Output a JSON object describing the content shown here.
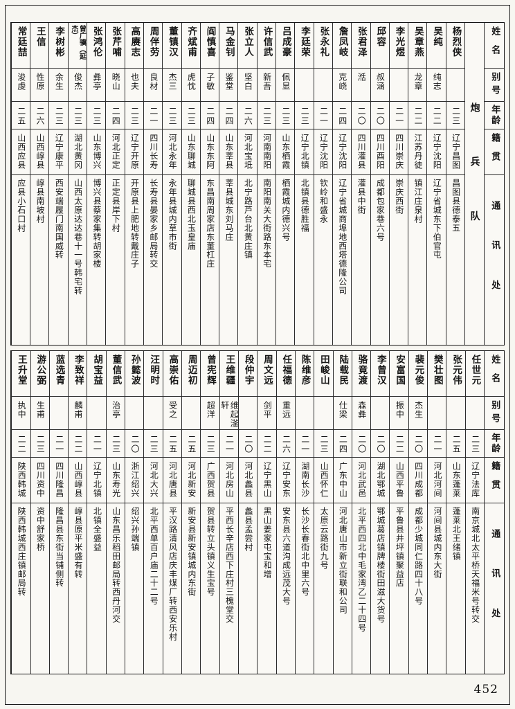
{
  "page": {
    "number": "452"
  },
  "headers": {
    "name": "姓名",
    "alias": "别号",
    "age": "年龄",
    "native": "籍贯",
    "address": "通讯处"
  },
  "tables": [
    {
      "section": "炮兵队",
      "entries": [
        {
          "name": "杨烈侠",
          "alias": "",
          "age": "二三",
          "native": "辽宁昌图",
          "address": "昌图县德泰五"
        },
        {
          "name": "吴纯",
          "alias": "纯志",
          "age": "二二",
          "native": "辽宁沈阳",
          "address": "辽宁省城东下伯官屯"
        },
        {
          "name": "吴章燕",
          "alias": "龙章",
          "age": "二二",
          "native": "江苏丹徒",
          "address": "镇江庄泉村"
        },
        {
          "name": "李光煜",
          "alias": "",
          "age": "二一",
          "native": "四川崇庆",
          "address": "崇庆西街"
        },
        {
          "name": "邱容",
          "alias": "叔涵",
          "age": "二〇",
          "native": "四川酉阳",
          "address": "成都包家巷六号"
        },
        {
          "name": "张君泽",
          "alias": "湉",
          "age": "二〇",
          "native": "四川灌县",
          "address": "灌县中街"
        },
        {
          "name": "詹凤岐",
          "alias": "克峣",
          "age": "二四",
          "native": "辽宁沈阳",
          "address": "辽宁省城商埠地西塔德隆公司"
        },
        {
          "name": "张永礼",
          "alias": "",
          "age": "二一",
          "native": "辽宁沈阳",
          "address": "钦岭和盛永"
        },
        {
          "name": "李廷荣",
          "alias": "",
          "age": "二三",
          "native": "辽宁北镇",
          "address": "北镇县德胜福"
        },
        {
          "name": "吕成豪",
          "alias": "佩显",
          "age": "二三",
          "native": "山东栖霞",
          "address": "栖霞城内德兴号"
        },
        {
          "name": "许信武",
          "alias": "新吾",
          "age": "二三",
          "native": "河南南阳",
          "address": "南阳南关大街路东本宅"
        },
        {
          "name": "张立人",
          "alias": "坚白",
          "age": "二六",
          "native": "河北宝坻",
          "address": "北宁路芦台北黄庄镇"
        },
        {
          "name": "马金钊",
          "alias": "鉴堂",
          "age": "二四",
          "native": "山东莘县",
          "address": "莘县城东刘马庄"
        },
        {
          "name": "阎慎喜",
          "alias": "子敏",
          "age": "二四",
          "native": "山东东阿",
          "address": "东昌南周家店东董杠庄"
        },
        {
          "name": "齐斌甫",
          "alias": "虎忱",
          "age": "二三",
          "native": "山东聊城",
          "address": "聊城县西北玉皇庙"
        },
        {
          "name": "董镇汉",
          "alias": "杰三",
          "age": "二三",
          "native": "河北永年",
          "address": "永年县城内草市街"
        },
        {
          "name": "周伴劳",
          "alias": "良材",
          "age": "二一",
          "native": "四川长寿",
          "address": "长寿县晏家乡邮局转交"
        },
        {
          "name": "高赓志",
          "alias": "也夫",
          "age": "二三",
          "native": "辽宁开原",
          "address": "开原县上肥地转戴庄子"
        },
        {
          "name": "张芹哺",
          "alias": "晓山",
          "age": "二四",
          "native": "河北正定",
          "address": "正定县岸下村"
        },
        {
          "name": "张鸿伦",
          "alias": "彝亭",
          "age": "二三",
          "native": "山东博兴",
          "address": "博兴县蔡家集转胡家楼"
        },
        {
          "name": "曾广骥（延杰）",
          "alias": "俊杰",
          "age": "二三",
          "native": "湖北黄冈",
          "address": "山西太原达达巷十一号韩宅转"
        },
        {
          "name": "李树彬",
          "alias": "余生",
          "age": "二三",
          "native": "辽宁康平",
          "address": "西安端履门南国威转"
        },
        {
          "name": "王信",
          "alias": "性原",
          "age": "二六",
          "native": "山西崞县",
          "address": "崞县南坡村"
        },
        {
          "name": "常廷喆",
          "alias": "浚虔",
          "age": "二五",
          "native": "山西应县",
          "address": "应县小石口村"
        }
      ]
    },
    {
      "section": "",
      "entries": [
        {
          "name": "任世元",
          "alias": "",
          "age": "二三",
          "native": "辽宁法库",
          "address": "南京城北太平桥天福米号转交"
        },
        {
          "name": "张元伟",
          "alias": "",
          "age": "二五",
          "native": "山东蓬莱",
          "address": "蓬莱北王绪镇"
        },
        {
          "name": "樊壮图",
          "alias": "",
          "age": "二一",
          "native": "河北河间",
          "address": "河间县城内东大街"
        },
        {
          "name": "裴元俊",
          "alias": "杰生",
          "age": "二〇",
          "native": "四川成都",
          "address": "成都少城同仁路四十八号"
        },
        {
          "name": "安富国",
          "alias": "振中",
          "age": "二二",
          "native": "山西平鲁",
          "address": "平鲁县井坪镇聚益店"
        },
        {
          "name": "李曾汉",
          "alias": "",
          "age": "二〇",
          "native": "湖北鄂城",
          "address": "鄂城葛店镇牌楼街田滋大货号"
        },
        {
          "name": "骆竟渡",
          "alias": "森彝",
          "age": "二〇",
          "native": "河北武邑",
          "address": "北平西四北中毛家湾乙二十四号"
        },
        {
          "name": "陆载民",
          "alias": "仕梁",
          "age": "二四",
          "native": "广东中山",
          "address": "河北唐山市新立街联和公司"
        },
        {
          "name": "田峻山",
          "alias": "",
          "age": "二三",
          "native": "山西怀仁",
          "address": "太原云路街九号"
        },
        {
          "name": "陈维彦",
          "alias": "",
          "age": "二一",
          "native": "湖南长沙",
          "address": "长沙长春街北中里六号"
        },
        {
          "name": "任福德",
          "alias": "重远",
          "age": "二六",
          "native": "辽宁安东",
          "address": "安东县六道沟成远茂大号"
        },
        {
          "name": "周文远",
          "alias": "剑平",
          "age": "二二",
          "native": "辽宁黑山",
          "address": "黑山姜家屯宝和增"
        },
        {
          "name": "段仲宇",
          "alias": "",
          "age": "二〇",
          "native": "河北蠡县",
          "address": "蠡县孟尝村"
        },
        {
          "name": "王维疆",
          "alias": "维起滏轩",
          "age": "二一",
          "native": "河北房山",
          "address": "平西长辛店西下庄村三槐堂交"
        },
        {
          "name": "曾宪辉",
          "alias": "超洋",
          "age": "二三",
          "native": "广西贺县",
          "address": "贺县转立头镇义生宝号"
        },
        {
          "name": "周迈初",
          "alias": "",
          "age": "二五",
          "native": "河北新安",
          "address": "新安县新安镇城内东街"
        },
        {
          "name": "高崇佑",
          "alias": "受之",
          "age": "二五",
          "native": "河北唐县",
          "address": "平汉路清风店庆丰煤厂转西安乐村"
        },
        {
          "name": "汪明时",
          "alias": "",
          "age": "二三",
          "native": "河北大兴",
          "address": "北平西单百户庙二十二号"
        },
        {
          "name": "孙懿波",
          "alias": "",
          "age": "二〇",
          "native": "浙江绍兴",
          "address": "绍兴孙端镇"
        },
        {
          "name": "董信武",
          "alias": "治亭",
          "age": "二三",
          "native": "山东寿光",
          "address": "山东昌乐稻田邮局转西丹河交"
        },
        {
          "name": "胡宝益",
          "alias": "",
          "age": "二一",
          "native": "辽宁北镇",
          "address": "北镇全盛益"
        },
        {
          "name": "李致祥",
          "alias": "麟甫",
          "age": "二二",
          "native": "山西崞县",
          "address": "崞县原平米盛有转"
        },
        {
          "name": "蓝选青",
          "alias": "",
          "age": "二一",
          "native": "四川隆昌",
          "address": "隆昌县东街当铺侧转"
        },
        {
          "name": "游公弼",
          "alias": "生甫",
          "age": "二三",
          "native": "四川资中",
          "address": "资中舒家桥"
        },
        {
          "name": "王升堂",
          "alias": "执中",
          "age": "二二",
          "native": "陕西韩城",
          "address": "陕西韩城西庄镇邮局转"
        }
      ]
    }
  ]
}
